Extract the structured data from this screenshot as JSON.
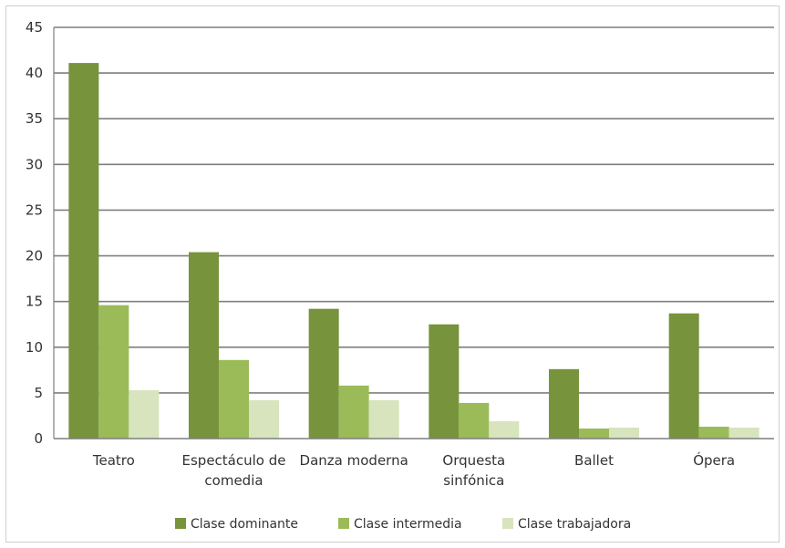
{
  "chart_data": {
    "type": "bar",
    "categories": [
      [
        "Teatro"
      ],
      [
        "Espectáculo de",
        "comedia"
      ],
      [
        "Danza moderna"
      ],
      [
        "Orquesta",
        "sinfónica"
      ],
      [
        "Ballet"
      ],
      [
        "Ópera"
      ]
    ],
    "series": [
      {
        "name": "Clase dominante",
        "color": "#77933c",
        "values": [
          41.1,
          20.4,
          14.2,
          12.5,
          7.6,
          13.7
        ]
      },
      {
        "name": "Clase intermedia",
        "color": "#9bbb59",
        "values": [
          14.6,
          8.6,
          5.8,
          3.9,
          1.1,
          1.3
        ]
      },
      {
        "name": "Clase trabajadora",
        "color": "#d7e4bd",
        "values": [
          5.3,
          4.2,
          4.2,
          1.9,
          1.2,
          1.2
        ]
      }
    ],
    "yticks": [
      "0",
      "5",
      "10",
      "15",
      "20",
      "25",
      "30",
      "35",
      "40",
      "45"
    ],
    "ylim": [
      0,
      45
    ],
    "grid": true,
    "legend": "bottom"
  }
}
